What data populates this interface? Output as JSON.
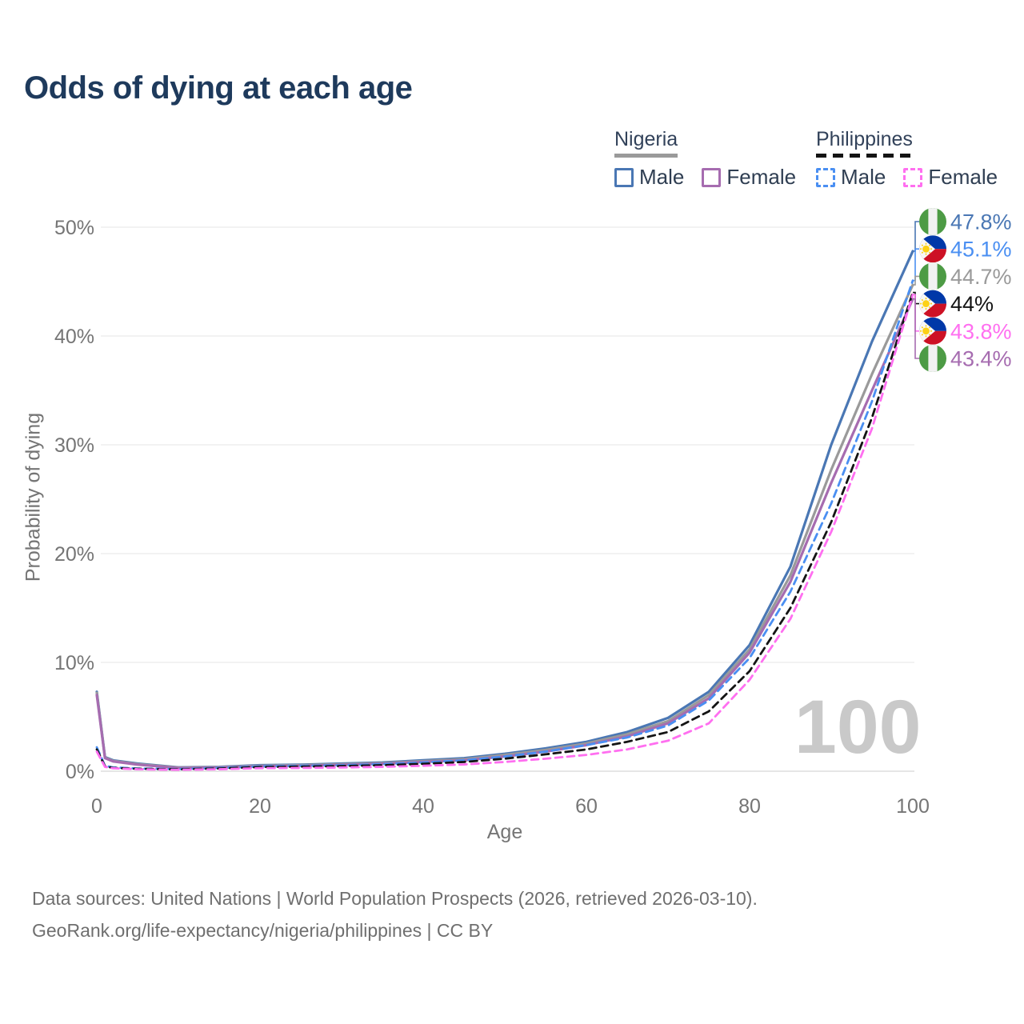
{
  "header": {
    "title": "Odds of dying at each age"
  },
  "legend": {
    "groups": [
      {
        "label": "Nigeria",
        "line_style": "solid",
        "line_color": "#9a9a9a",
        "items": [
          {
            "label": "Male",
            "color": "#4a77b4"
          },
          {
            "label": "Female",
            "color": "#a66cb0"
          }
        ]
      },
      {
        "label": "Philippines",
        "line_style": "dashed",
        "line_color": "#141414",
        "items": [
          {
            "label": "Male",
            "color": "#4a8ff2"
          },
          {
            "label": "Female",
            "color": "#ff6ff0"
          }
        ]
      }
    ]
  },
  "watermark": "100",
  "axes": {
    "x": {
      "label": "Age",
      "ticks": [
        0,
        20,
        40,
        60,
        80,
        100
      ]
    },
    "y": {
      "label": "Probability of dying",
      "ticks": [
        "0%",
        "10%",
        "20%",
        "30%",
        "40%",
        "50%"
      ],
      "tick_values": [
        0,
        10,
        20,
        30,
        40,
        50
      ]
    }
  },
  "end_labels": [
    {
      "value": "47.8%",
      "series": "Nigeria Male",
      "flag": "nigeria",
      "color": "#4a77b4"
    },
    {
      "value": "45.1%",
      "series": "Philippines Male",
      "flag": "philippines",
      "color": "#4a8ff2"
    },
    {
      "value": "44.7%",
      "series": "Nigeria Both sexes",
      "flag": "nigeria",
      "color": "#9a9a9a"
    },
    {
      "value": "44%",
      "series": "Philippines Both sexes",
      "flag": "philippines",
      "color": "#141414"
    },
    {
      "value": "43.8%",
      "series": "Philippines Female",
      "flag": "philippines",
      "color": "#ff6ff0"
    },
    {
      "value": "43.4%",
      "series": "Nigeria Female",
      "flag": "nigeria",
      "color": "#a66cb0"
    }
  ],
  "chart_data": {
    "type": "line",
    "title": "Odds of dying at each age",
    "xlabel": "Age",
    "ylabel": "Probability of dying",
    "xlim": [
      0,
      100
    ],
    "ylim": [
      0,
      50
    ],
    "grid": "horizontal",
    "legend_position": "top-right",
    "x": [
      0,
      1,
      2,
      5,
      10,
      15,
      20,
      25,
      30,
      35,
      40,
      45,
      50,
      55,
      60,
      65,
      70,
      75,
      80,
      85,
      90,
      95,
      100
    ],
    "series": [
      {
        "name": "Nigeria Male",
        "color": "#4a77b4",
        "dash": "none",
        "end_value_pct": 47.8,
        "values": [
          7.3,
          1.3,
          1.0,
          0.7,
          0.35,
          0.4,
          0.55,
          0.6,
          0.7,
          0.8,
          1.0,
          1.2,
          1.6,
          2.1,
          2.7,
          3.6,
          4.9,
          7.3,
          11.6,
          18.8,
          30.0,
          39.5,
          47.8
        ]
      },
      {
        "name": "Nigeria Both sexes",
        "color": "#9a9a9a",
        "dash": "none",
        "end_value_pct": 44.7,
        "values": [
          7.2,
          1.25,
          0.95,
          0.65,
          0.33,
          0.37,
          0.5,
          0.55,
          0.64,
          0.74,
          0.92,
          1.1,
          1.5,
          1.95,
          2.55,
          3.4,
          4.6,
          7.0,
          11.2,
          18.0,
          27.7,
          36.5,
          44.7
        ]
      },
      {
        "name": "Nigeria Female",
        "color": "#a66cb0",
        "dash": "none",
        "end_value_pct": 43.4,
        "values": [
          7.0,
          1.2,
          0.9,
          0.6,
          0.3,
          0.33,
          0.45,
          0.5,
          0.58,
          0.68,
          0.85,
          1.0,
          1.35,
          1.8,
          2.4,
          3.2,
          4.4,
          6.7,
          10.9,
          17.4,
          26.5,
          35.0,
          43.4
        ]
      },
      {
        "name": "Philippines Male",
        "color": "#4a8ff2",
        "dash": "dashed",
        "end_value_pct": 45.1,
        "values": [
          2.2,
          0.5,
          0.35,
          0.25,
          0.2,
          0.3,
          0.45,
          0.5,
          0.55,
          0.65,
          0.8,
          1.0,
          1.35,
          1.8,
          2.4,
          3.1,
          4.2,
          6.5,
          10.4,
          16.5,
          24.6,
          34.0,
          45.1
        ]
      },
      {
        "name": "Philippines Both sexes",
        "color": "#141414",
        "dash": "dashed",
        "end_value_pct": 44.0,
        "values": [
          2.0,
          0.45,
          0.3,
          0.22,
          0.17,
          0.25,
          0.38,
          0.42,
          0.47,
          0.55,
          0.68,
          0.85,
          1.15,
          1.55,
          2.0,
          2.7,
          3.6,
          5.5,
          9.2,
          15.0,
          22.9,
          32.5,
          44.0
        ]
      },
      {
        "name": "Philippines Female",
        "color": "#ff6ff0",
        "dash": "dashed",
        "end_value_pct": 43.8,
        "values": [
          1.8,
          0.4,
          0.27,
          0.18,
          0.13,
          0.18,
          0.28,
          0.3,
          0.34,
          0.4,
          0.5,
          0.62,
          0.85,
          1.15,
          1.5,
          2.0,
          2.8,
          4.4,
          8.4,
          14.0,
          22.0,
          31.5,
          43.8
        ]
      }
    ]
  },
  "flag_colors": {
    "nigeria_green": "#4d9b45",
    "ph_blue": "#0038a8",
    "ph_red": "#cd1125",
    "ph_yellow": "#fcd116"
  },
  "footer": {
    "line1": "Data sources: United Nations | World Population Prospects (2026, retrieved 2026-03-10).",
    "line2": "GeoRank.org/life-expectancy/nigeria/philippines | CC BY"
  }
}
